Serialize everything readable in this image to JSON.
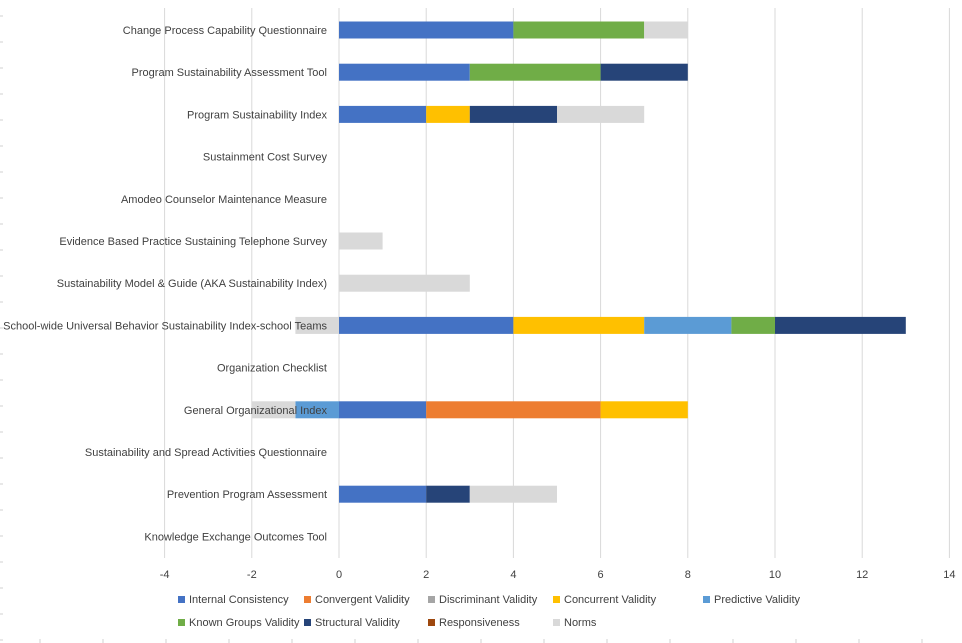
{
  "chart_data": {
    "type": "bar",
    "orientation": "horizontal",
    "stacked": true,
    "categories": [
      "Change Process Capability Questionnaire",
      "Program Sustainability Assessment Tool",
      "Program Sustainability Index",
      "Sustainment Cost Survey",
      "Amodeo Counselor Maintenance Measure",
      "Evidence Based Practice Sustaining Telephone Survey",
      "Sustainability Model & Guide (AKA Sustainability Index)",
      "School-wide Universal Behavior Sustainability Index-school Teams",
      "Organization Checklist",
      "General Organizational Index",
      "Sustainability and Spread Activities Questionnaire",
      "Prevention Program Assessment",
      "Knowledge Exchange Outcomes Tool"
    ],
    "series": [
      {
        "name": "Internal Consistency",
        "color": "#4472c4",
        "values": [
          4,
          3,
          2,
          0,
          0,
          0,
          0,
          4,
          0,
          2,
          0,
          2,
          0
        ]
      },
      {
        "name": "Convergent Validity",
        "color": "#ed7d31",
        "values": [
          0,
          0,
          0,
          0,
          0,
          0,
          0,
          0,
          0,
          4,
          0,
          0,
          0
        ]
      },
      {
        "name": "Discriminant Validity",
        "color": "#a5a5a5",
        "values": [
          0,
          0,
          0,
          0,
          0,
          0,
          0,
          0,
          0,
          0,
          0,
          0,
          0
        ]
      },
      {
        "name": "Concurrent Validity",
        "color": "#ffc000",
        "values": [
          0,
          0,
          1,
          0,
          0,
          0,
          0,
          3,
          0,
          2,
          0,
          0,
          0
        ]
      },
      {
        "name": "Predictive Validity",
        "color": "#5b9bd5",
        "values": [
          0,
          0,
          0,
          0,
          0,
          0,
          0,
          2,
          0,
          -1,
          0,
          0,
          0
        ]
      },
      {
        "name": "Known Groups Validity",
        "color": "#70ad47",
        "values": [
          3,
          3,
          0,
          0,
          0,
          0,
          0,
          1,
          0,
          0,
          0,
          0,
          0
        ]
      },
      {
        "name": "Structural Validity",
        "color": "#264478",
        "values": [
          0,
          2,
          2,
          0,
          0,
          0,
          0,
          3,
          0,
          0,
          0,
          1,
          0
        ]
      },
      {
        "name": "Responsiveness",
        "color": "#9e480e",
        "values": [
          0,
          0,
          0,
          0,
          0,
          0,
          0,
          0,
          0,
          0,
          0,
          0,
          0
        ]
      },
      {
        "name": "Norms",
        "color": "#d9d9d9",
        "values": [
          1,
          0,
          2,
          0,
          0,
          1,
          3,
          -1,
          0,
          -1,
          0,
          2,
          0
        ]
      }
    ],
    "xlim": [
      -4,
      14
    ],
    "xticks": [
      -4,
      -2,
      0,
      2,
      4,
      6,
      8,
      10,
      12,
      14
    ],
    "grid": true,
    "legend": "bottom",
    "title": "",
    "xlabel": "",
    "ylabel": ""
  }
}
